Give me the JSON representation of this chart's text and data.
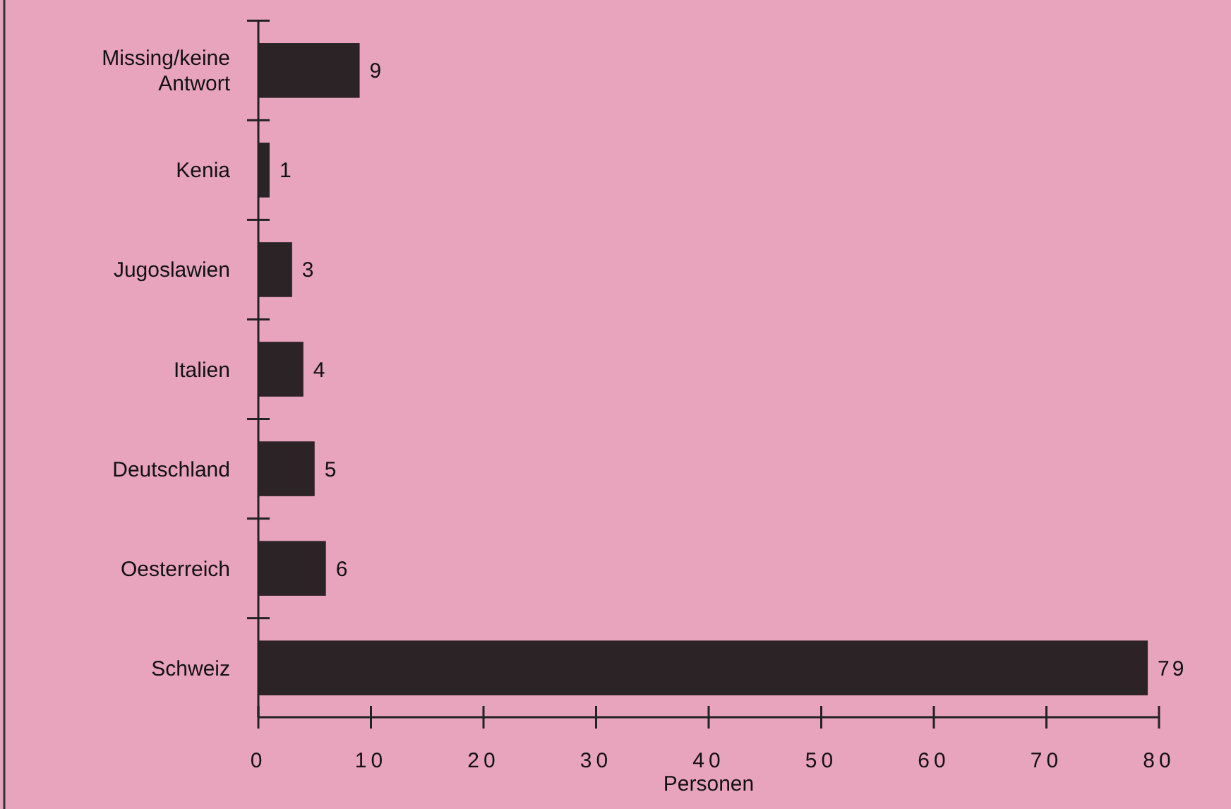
{
  "chart_data": {
    "type": "bar",
    "orientation": "horizontal",
    "xlabel": "Personen",
    "categories": [
      "Missing/keine Antwort",
      "Kenia",
      "Jugoslawien",
      "Italien",
      "Deutschland",
      "Oesterreich",
      "Schweiz"
    ],
    "values": [
      9,
      1,
      3,
      4,
      5,
      6,
      79
    ],
    "color": "#2b2325",
    "xlim": [
      0,
      80
    ],
    "xticks": [
      0,
      10,
      20,
      30,
      40,
      50,
      60,
      70,
      80
    ],
    "data_labels": true
  }
}
